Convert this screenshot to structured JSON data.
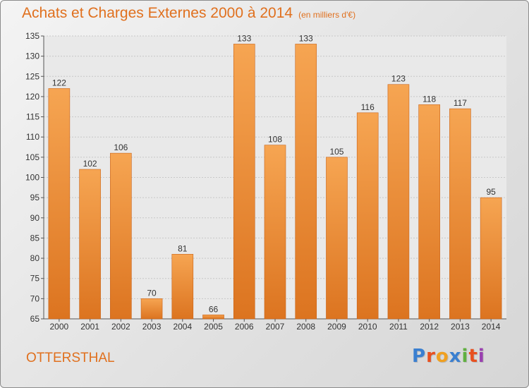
{
  "header": {
    "title": "Achats et Charges Externes 2000 à 2014",
    "subtitle": "(en milliers d'€)"
  },
  "commune": "OTTERSTHAL",
  "logo": {
    "text": "Proxiti",
    "colors": [
      "#3a7fd0",
      "#e8501f",
      "#f0a020",
      "#3a7fd0",
      "#60b040",
      "#e8501f",
      "#9a40b0"
    ]
  },
  "colors": {
    "bar_light": "#f6a552",
    "bar_dark": "#dc7420",
    "accent": "#e0701e"
  },
  "chart_data": {
    "type": "bar",
    "title": "Achats et Charges Externes 2000 à 2014",
    "categories": [
      "2000",
      "2001",
      "2002",
      "2003",
      "2004",
      "2005",
      "2006",
      "2007",
      "2008",
      "2009",
      "2010",
      "2011",
      "2012",
      "2013",
      "2014"
    ],
    "values": [
      122,
      102,
      106,
      70,
      81,
      66,
      133,
      108,
      133,
      105,
      116,
      123,
      118,
      117,
      95
    ],
    "ylim": [
      65,
      135
    ],
    "yticks": [
      65,
      70,
      75,
      80,
      85,
      90,
      95,
      100,
      105,
      110,
      115,
      120,
      125,
      130,
      135
    ],
    "grid": true,
    "xlabel": "",
    "ylabel": ""
  }
}
